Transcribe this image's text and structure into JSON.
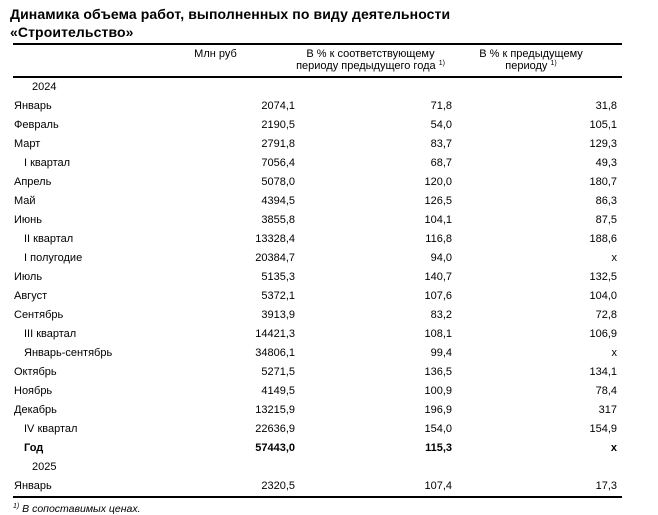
{
  "title": {
    "line1": "Динамика объема работ, выполненных по виду деятельности",
    "line2": "«Строительство»"
  },
  "table": {
    "columns": {
      "col1": "Млн руб",
      "col2_line1": "В % к соответствующему",
      "col2_line2": "периоду предыдущего года",
      "col2_sup": "1)",
      "col3_line1": "В % к предыдущему",
      "col3_line2": "периоду",
      "col3_sup": "1)"
    },
    "rows": [
      {
        "label": "2024",
        "type": "year",
        "v1": "",
        "v2": "",
        "v3": ""
      },
      {
        "label": "Январь",
        "type": "month",
        "v1": "2074,1",
        "v2": "71,8",
        "v3": "31,8"
      },
      {
        "label": "Февраль",
        "type": "month",
        "v1": "2190,5",
        "v2": "54,0",
        "v3": "105,1"
      },
      {
        "label": "Март",
        "type": "month",
        "v1": "2791,8",
        "v2": "83,7",
        "v3": "129,3"
      },
      {
        "label": "I квартал",
        "type": "sub",
        "v1": "7056,4",
        "v2": "68,7",
        "v3": "49,3"
      },
      {
        "label": "Апрель",
        "type": "month",
        "v1": "5078,0",
        "v2": "120,0",
        "v3": "180,7"
      },
      {
        "label": "Май",
        "type": "month",
        "v1": "4394,5",
        "v2": "126,5",
        "v3": "86,3"
      },
      {
        "label": "Июнь",
        "type": "month",
        "v1": "3855,8",
        "v2": "104,1",
        "v3": "87,5"
      },
      {
        "label": "II квартал",
        "type": "sub",
        "v1": "13328,4",
        "v2": "116,8",
        "v3": "188,6"
      },
      {
        "label": "I полугодие",
        "type": "sub",
        "v1": "20384,7",
        "v2": "94,0",
        "v3": "x"
      },
      {
        "label": "Июль",
        "type": "month",
        "v1": "5135,3",
        "v2": "140,7",
        "v3": "132,5"
      },
      {
        "label": "Август",
        "type": "month",
        "v1": "5372,1",
        "v2": "107,6",
        "v3": "104,0"
      },
      {
        "label": "Сентябрь",
        "type": "month",
        "v1": "3913,9",
        "v2": "83,2",
        "v3": "72,8"
      },
      {
        "label": "III квартал",
        "type": "sub",
        "v1": "14421,3",
        "v2": "108,1",
        "v3": "106,9"
      },
      {
        "label": "Январь-сентябрь",
        "type": "sub",
        "v1": "34806,1",
        "v2": "99,4",
        "v3": "x"
      },
      {
        "label": "Октябрь",
        "type": "month",
        "v1": "5271,5",
        "v2": "136,5",
        "v3": "134,1"
      },
      {
        "label": "Ноябрь",
        "type": "month",
        "v1": "4149,5",
        "v2": "100,9",
        "v3": "78,4"
      },
      {
        "label": "Декабрь",
        "type": "month",
        "v1": "13215,9",
        "v2": "196,9",
        "v3": "317"
      },
      {
        "label": "IV квартал",
        "type": "sub",
        "v1": "22636,9",
        "v2": "154,0",
        "v3": "154,9"
      },
      {
        "label": "Год",
        "type": "total",
        "v1": "57443,0",
        "v2": "115,3",
        "v3": "x"
      },
      {
        "label": "2025",
        "type": "year",
        "v1": "",
        "v2": "",
        "v3": ""
      },
      {
        "label": "Январь",
        "type": "month",
        "v1": "2320,5",
        "v2": "107,4",
        "v3": "17,3"
      }
    ]
  },
  "footnote": {
    "sup": "1)",
    "text": "В сопоставимых ценах."
  }
}
